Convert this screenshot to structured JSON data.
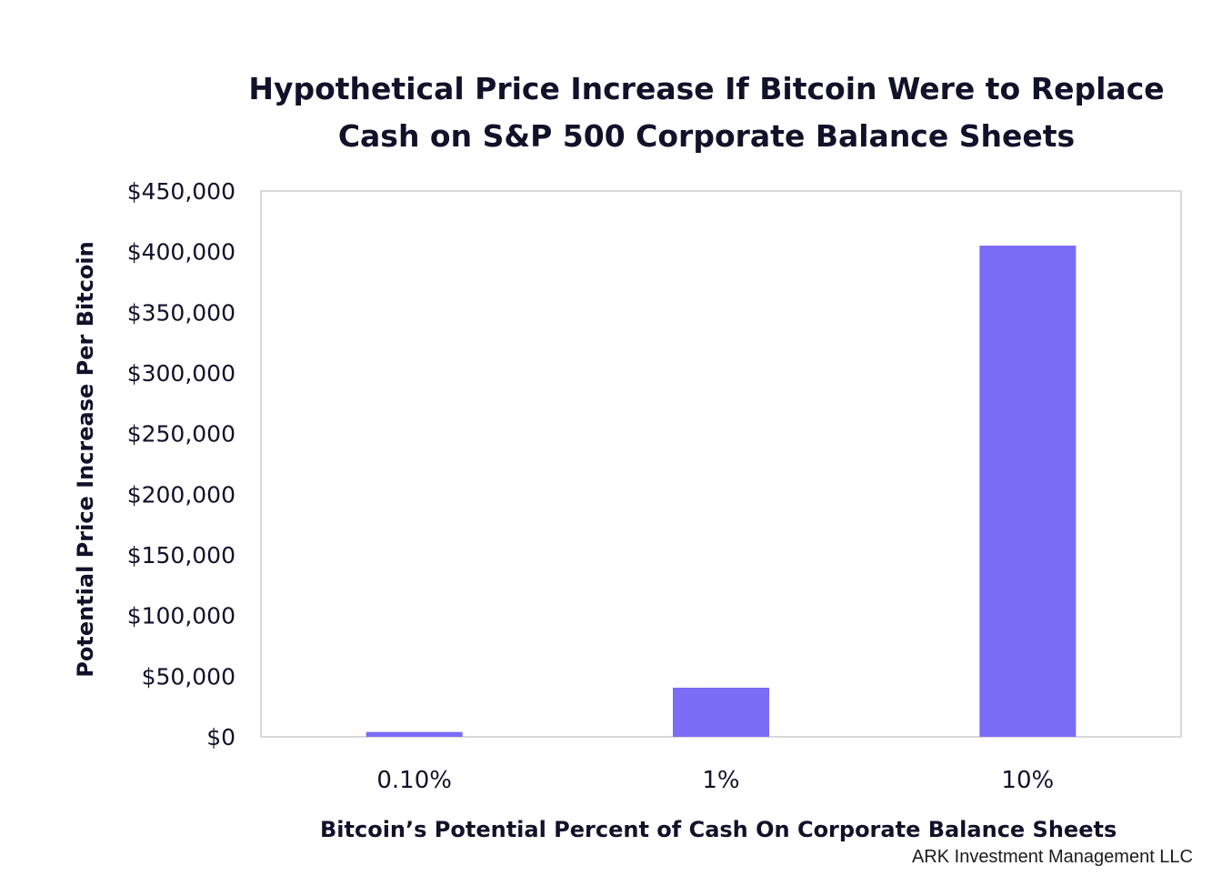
{
  "chart_data": {
    "type": "bar",
    "title_lines": [
      "Hypothetical Price Increase If Bitcoin Were to Replace",
      "Cash on S&P 500 Corporate Balance Sheets"
    ],
    "xlabel": "Bitcoin’s Potential Percent of Cash On Corporate Balance Sheets",
    "ylabel": "Potential Price Increase Per Bitcoin",
    "categories": [
      "0.10%",
      "1%",
      "10%"
    ],
    "values": [
      4000,
      40500,
      405000
    ],
    "ylim": [
      0,
      450000
    ],
    "yticks": [
      0,
      50000,
      100000,
      150000,
      200000,
      250000,
      300000,
      350000,
      400000,
      450000
    ],
    "ytick_labels": [
      "$0",
      "$50,000",
      "$100,000",
      "$150,000",
      "$200,000",
      "$250,000",
      "$300,000",
      "$350,000",
      "$400,000",
      "$450,000"
    ],
    "grid": false,
    "legend": "none",
    "bar_color": "#7b6cf6",
    "frame_color": "#d9d9d9"
  },
  "source": "ARK Investment Management LLC"
}
